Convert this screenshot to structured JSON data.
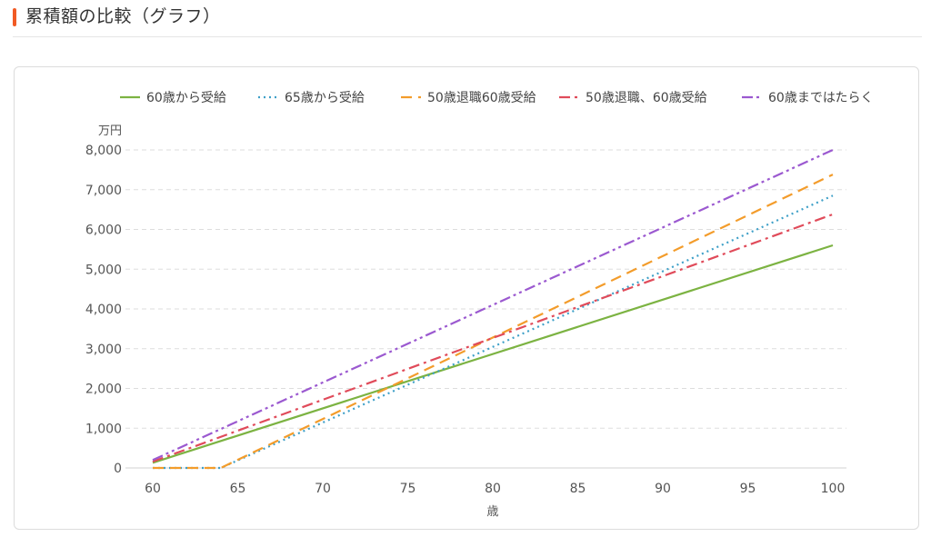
{
  "page": {
    "title": "累積額の比較（グラフ）",
    "accent_color": "#f15a24"
  },
  "chart_data": {
    "type": "line",
    "yunit": "万円",
    "xlabel": "歳",
    "xlim": [
      60,
      100
    ],
    "ylim": [
      0,
      8000
    ],
    "xticks": [
      60,
      65,
      70,
      75,
      80,
      85,
      90,
      95,
      100
    ],
    "yticks": [
      {
        "v": 0,
        "label": "0"
      },
      {
        "v": 1000,
        "label": "1,000"
      },
      {
        "v": 2000,
        "label": "2,000"
      },
      {
        "v": 3000,
        "label": "3,000"
      },
      {
        "v": 4000,
        "label": "4,000"
      },
      {
        "v": 5000,
        "label": "5,000"
      },
      {
        "v": 6000,
        "label": "6,000"
      },
      {
        "v": 7000,
        "label": "7,000"
      },
      {
        "v": 8000,
        "label": "8,000"
      }
    ],
    "grid": "horizontal-dashed",
    "legend_position": "top",
    "series": [
      {
        "name": "60歳から受給",
        "color": "#7cb342",
        "dash": "",
        "points": [
          [
            60,
            130
          ],
          [
            100,
            5600
          ]
        ]
      },
      {
        "name": "65歳から受給",
        "color": "#3fa0c8",
        "dash": "2,4",
        "points": [
          [
            60,
            0
          ],
          [
            64,
            0
          ],
          [
            100,
            6850
          ]
        ]
      },
      {
        "name": "50歳退職60歳受給",
        "color": "#f39c2b",
        "dash": "12,7",
        "points": [
          [
            60,
            0
          ],
          [
            64,
            0
          ],
          [
            100,
            7380
          ]
        ]
      },
      {
        "name": "50歳退職、60歳受給",
        "color": "#e04b5a",
        "dash": "12,5,3,5",
        "points": [
          [
            60,
            160
          ],
          [
            100,
            6380
          ]
        ]
      },
      {
        "name": "60歳まではたらく",
        "color": "#9b59d0",
        "dash": "12,4,3,4,3,4",
        "points": [
          [
            60,
            200
          ],
          [
            100,
            8000
          ]
        ]
      }
    ]
  }
}
